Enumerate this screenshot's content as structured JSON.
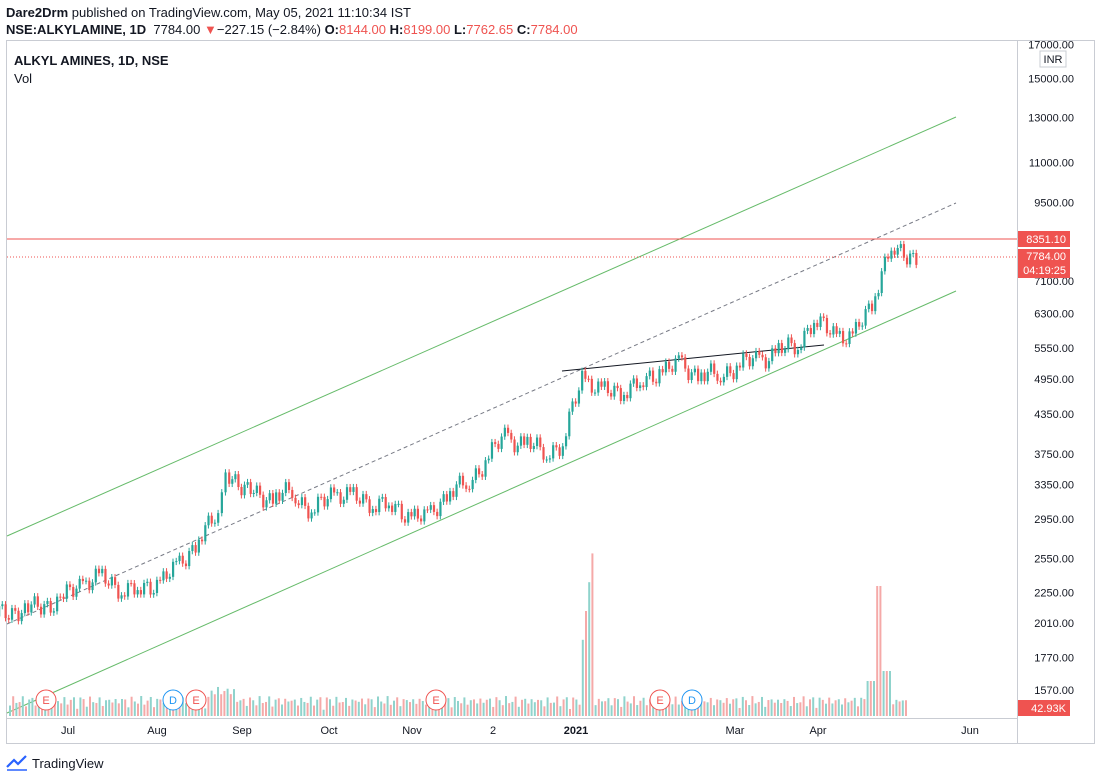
{
  "header": {
    "publisher": "Dare2Drm",
    "published_text": " published on TradingView.com, May 05, 2021 11:10:34 IST",
    "symbol": "NSE:ALKYLAMINE, 1D",
    "last": "7784.00",
    "change_arrow": "▼",
    "change": "−227.15 (−2.84%)",
    "o_label": "O:",
    "o": "8144.00",
    "h_label": "H:",
    "h": "8199.00",
    "l_label": "L:",
    "l": "7762.65",
    "c_label": "C:",
    "c": "7784.00"
  },
  "legend": {
    "title": "ALKYL AMINES, 1D, NSE",
    "volume": "Vol"
  },
  "currency": "INR",
  "footer": {
    "brand": "TradingView"
  },
  "colors": {
    "up": "#26a69a",
    "down": "#ef5350",
    "channel": "#66bb6a",
    "resistance": "#ef5350",
    "trendline": "#5d606b",
    "earnings": "#ef5350",
    "dividend": "#2196f3"
  },
  "chart_data": {
    "type": "candlestick",
    "title": "ALKYL AMINES, 1D, NSE",
    "y_axis": {
      "scale": "log",
      "range": [
        1450,
        17000
      ],
      "ticks": [
        17000,
        15000,
        13000,
        11000,
        9500,
        8351.1,
        7784.0,
        7100,
        6300,
        5550,
        4950,
        4350,
        3750,
        3350,
        2950,
        2550,
        2250,
        2010,
        1770,
        1570
      ],
      "tick_labels": [
        "17000.00",
        "15000.00",
        "13000.00",
        "11000.00",
        "9500.00",
        "8351.10",
        "7784.00",
        "7100.00",
        "6300.00",
        "5550.00",
        "4950.00",
        "4350.00",
        "3750.00",
        "3350.00",
        "2950.00",
        "2550.00",
        "2250.00",
        "2010.00",
        "1770.00",
        "1570.00"
      ]
    },
    "x_axis": {
      "labels": [
        "Jul",
        "Aug",
        "Sep",
        "Oct",
        "Nov",
        "2",
        "2021",
        "Mar",
        "Apr",
        "Jun"
      ]
    },
    "price_labels": {
      "resistance": "8351.10",
      "last": "7784.00",
      "countdown": "04:19:25",
      "volume": "42.93K"
    },
    "series": [
      {
        "name": "Price",
        "points": [
          [
            "2020-06-01",
            2080
          ],
          [
            "2020-06-15",
            2110
          ],
          [
            "2020-06-29",
            2180
          ],
          [
            "2020-07-06",
            2320
          ],
          [
            "2020-07-13",
            2380
          ],
          [
            "2020-07-20",
            2300
          ],
          [
            "2020-07-27",
            2260
          ],
          [
            "2020-08-03",
            2330
          ],
          [
            "2020-08-10",
            2450
          ],
          [
            "2020-08-17",
            2700
          ],
          [
            "2020-08-24",
            2950
          ],
          [
            "2020-08-28",
            3450
          ],
          [
            "2020-09-07",
            3300
          ],
          [
            "2020-09-14",
            3150
          ],
          [
            "2020-09-21",
            3300
          ],
          [
            "2020-09-28",
            3000
          ],
          [
            "2020-10-05",
            3250
          ],
          [
            "2020-10-12",
            3200
          ],
          [
            "2020-10-19",
            3150
          ],
          [
            "2020-10-26",
            3100
          ],
          [
            "2020-11-02",
            3000
          ],
          [
            "2020-11-09",
            2950
          ],
          [
            "2020-11-16",
            3250
          ],
          [
            "2020-11-23",
            3350
          ],
          [
            "2020-11-30",
            3650
          ],
          [
            "2020-12-07",
            4000
          ],
          [
            "2020-12-14",
            3900
          ],
          [
            "2020-12-21",
            3800
          ],
          [
            "2020-12-28",
            3850
          ],
          [
            "2021-01-04",
            5000
          ],
          [
            "2021-01-11",
            4700
          ],
          [
            "2021-01-18",
            4750
          ],
          [
            "2021-01-25",
            4850
          ],
          [
            "2021-02-01",
            5100
          ],
          [
            "2021-02-08",
            5200
          ],
          [
            "2021-02-15",
            5050
          ],
          [
            "2021-02-22",
            5000
          ],
          [
            "2021-03-01",
            5200
          ],
          [
            "2021-03-08",
            5300
          ],
          [
            "2021-03-15",
            5450
          ],
          [
            "2021-03-22",
            5600
          ],
          [
            "2021-03-29",
            6100
          ],
          [
            "2021-04-05",
            5900
          ],
          [
            "2021-04-12",
            5700
          ],
          [
            "2021-04-19",
            6600
          ],
          [
            "2021-04-26",
            8000
          ],
          [
            "2021-05-05",
            7784
          ]
        ]
      },
      {
        "name": "Vol",
        "note": "relative volume bars; spikes near Jan 2021 and late Apr 2021"
      }
    ],
    "drawings": [
      {
        "type": "channel",
        "note": "parallel green trend channel with dashed midline"
      },
      {
        "type": "horizontal_line",
        "value": 8351.1
      },
      {
        "type": "trendline",
        "from": [
          5150,
          "2020-12-28"
        ],
        "to": [
          5600,
          "2021-04-12"
        ]
      }
    ],
    "events": [
      "E",
      "D",
      "E",
      "E",
      "E",
      "D"
    ]
  }
}
